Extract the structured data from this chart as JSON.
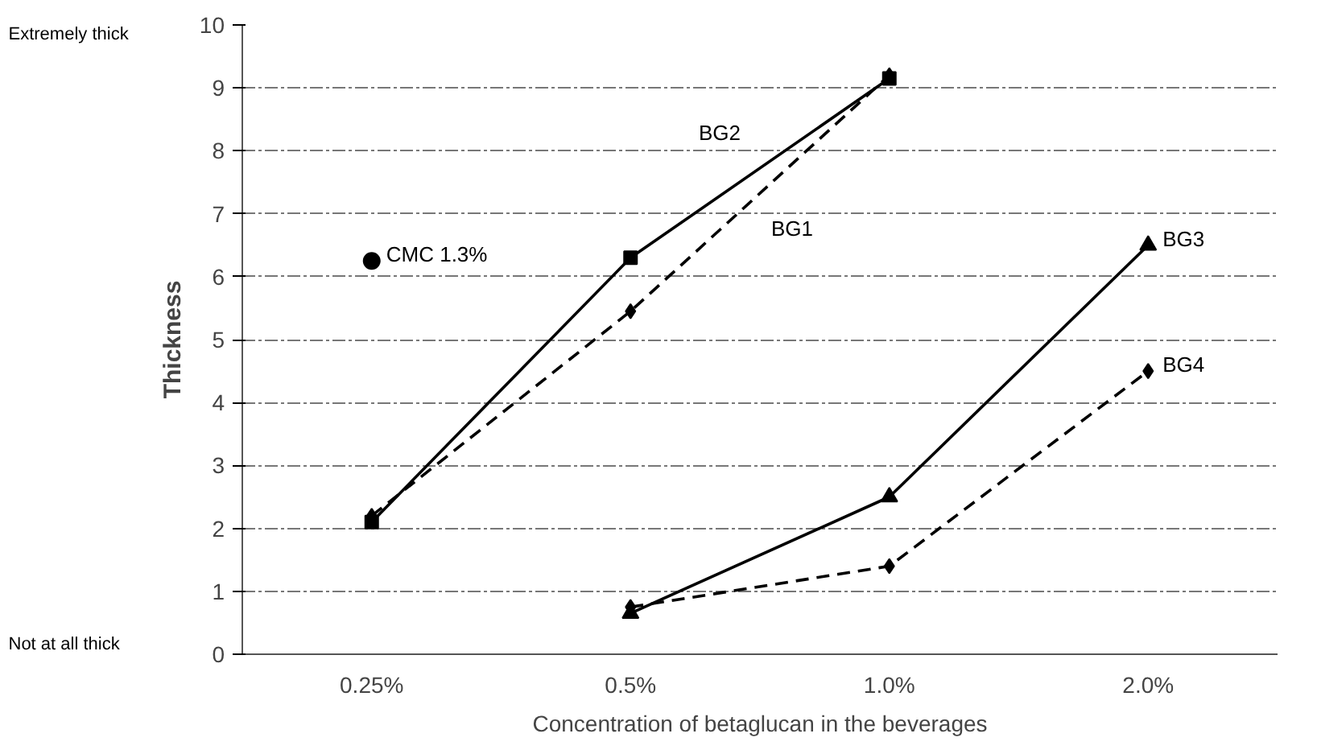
{
  "chart_data": {
    "type": "line",
    "xlabel": "Concentration of betaglucan in the beverages",
    "ylabel": "Thickness",
    "categories": [
      "0.25%",
      "0.5%",
      "1.0%",
      "2.0%"
    ],
    "ylim": [
      0,
      10
    ],
    "yticks": [
      0,
      1,
      2,
      3,
      4,
      5,
      6,
      7,
      8,
      9,
      10
    ],
    "grid": "y",
    "legend": false,
    "annotations": [
      "Extremely thick",
      "Not at all thick"
    ],
    "series": [
      {
        "name": "BG1",
        "color": "#000000",
        "values": [
          2.2,
          5.45,
          9.2,
          null
        ],
        "marker": "diamond",
        "line_style": "dashed"
      },
      {
        "name": "BG2",
        "color": "#000000",
        "values": [
          2.1,
          6.3,
          9.15,
          null
        ],
        "marker": "square",
        "line_style": "solid"
      },
      {
        "name": "BG3",
        "color": "#000000",
        "values": [
          null,
          0.65,
          2.5,
          6.5
        ],
        "marker": "triangle",
        "line_style": "solid"
      },
      {
        "name": "BG4",
        "color": "#000000",
        "values": [
          null,
          0.75,
          1.4,
          4.5
        ],
        "marker": "diamond",
        "line_style": "dashed"
      },
      {
        "name": "CMC 1.3%",
        "type": "scatter",
        "color": "#000000",
        "x": [
          "0.25%"
        ],
        "values": [
          6.25
        ],
        "marker": "circle"
      }
    ]
  }
}
